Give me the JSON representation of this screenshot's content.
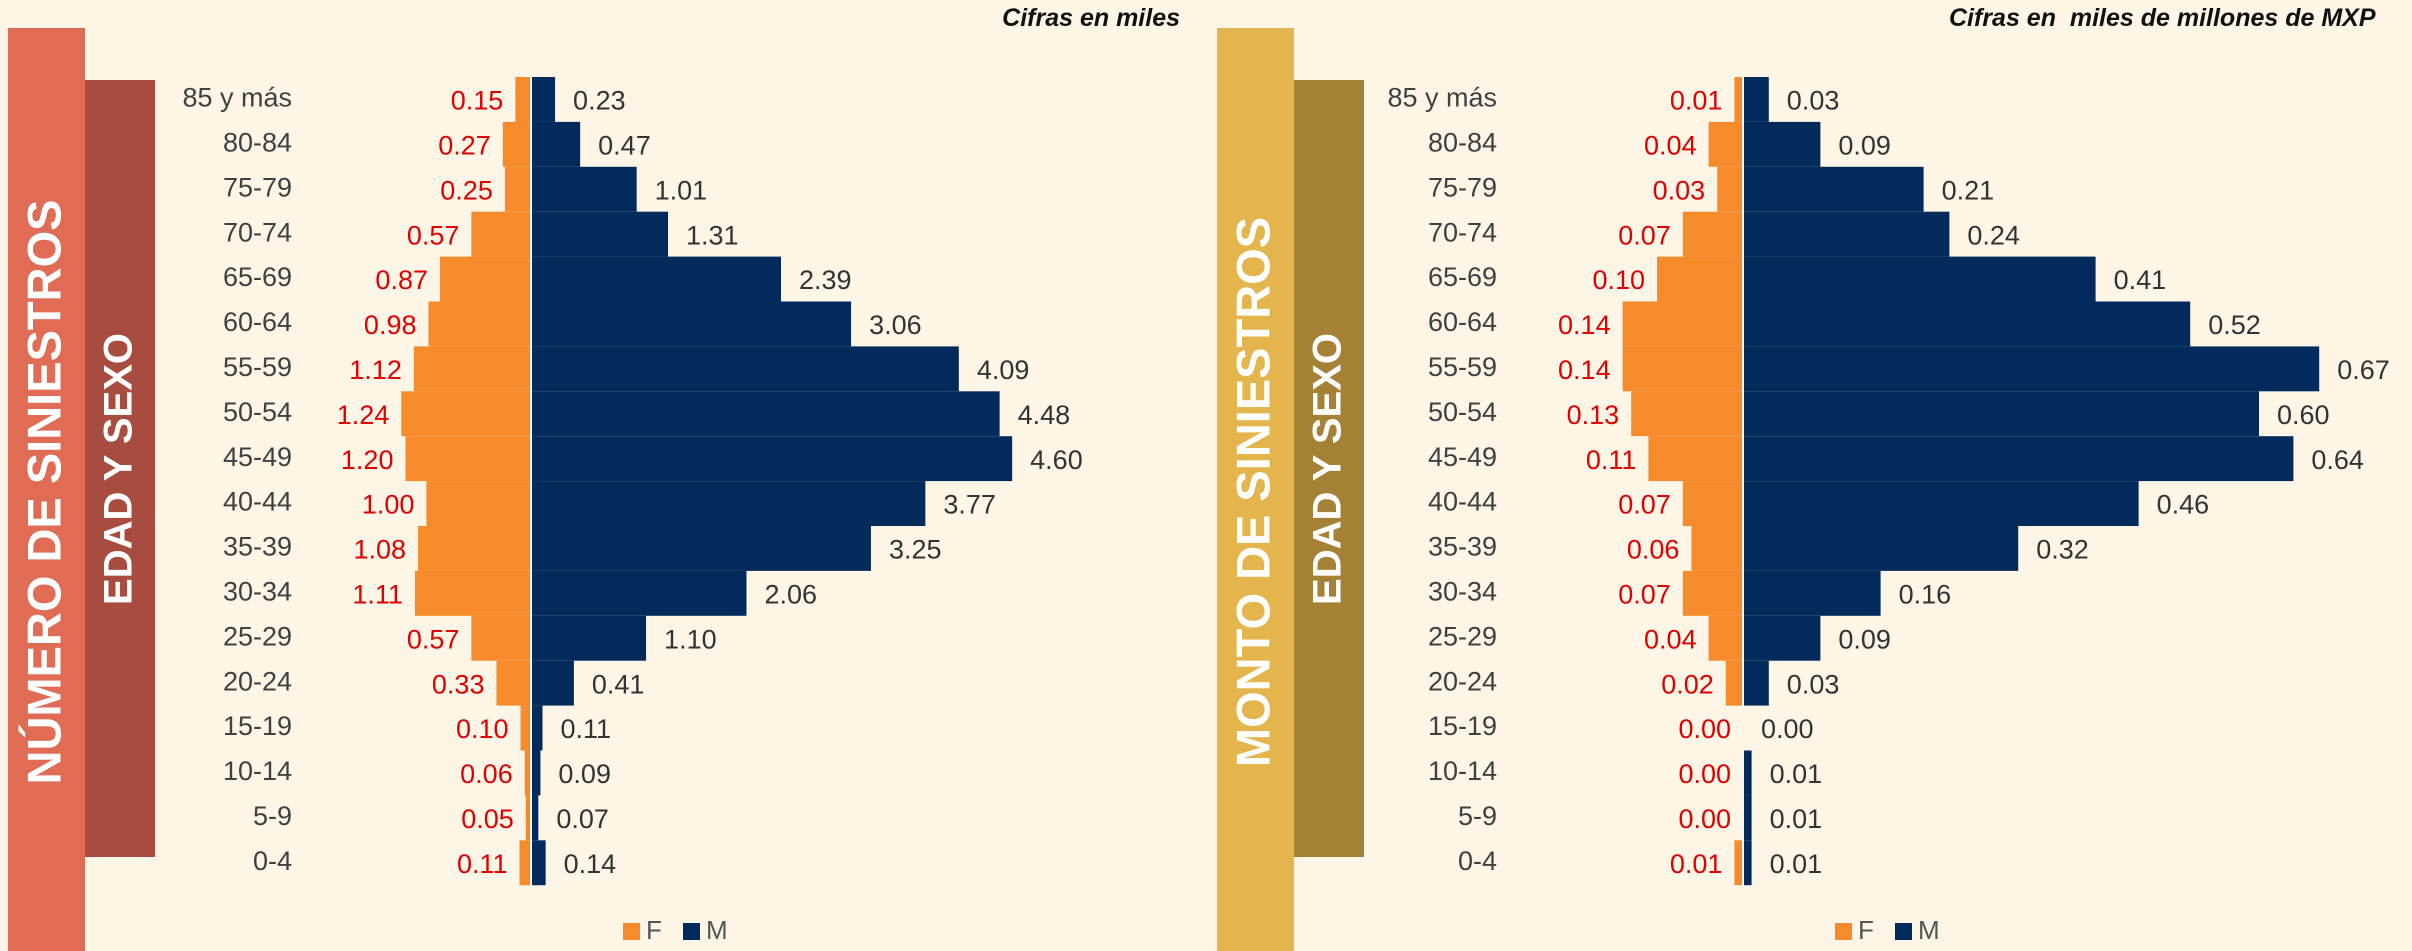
{
  "chart_data": [
    {
      "type": "pyramid",
      "title": "NÚMERO DE SINIESTROS",
      "subtitle": "EDAD Y SEXO",
      "note": "Cifras en miles",
      "categories": [
        "85 y más",
        "80-84",
        "75-79",
        "70-74",
        "65-69",
        "60-64",
        "55-59",
        "50-54",
        "45-49",
        "40-44",
        "35-39",
        "30-34",
        "25-29",
        "20-24",
        "15-19",
        "10-14",
        "5-9",
        "0-4"
      ],
      "series": [
        {
          "name": "F",
          "color": "#f68b2c",
          "values": [
            0.15,
            0.27,
            0.25,
            0.57,
            0.87,
            0.98,
            1.12,
            1.24,
            1.2,
            1.0,
            1.08,
            1.11,
            0.57,
            0.33,
            0.1,
            0.06,
            0.05,
            0.11
          ],
          "value_labels": [
            "0.15",
            "0.27",
            "0.25",
            "0.57",
            "0.87",
            "0.98",
            "1.12",
            "1.24",
            "1.20",
            "1.00",
            "1.08",
            "1.11",
            "0.57",
            "0.33",
            "0.10",
            "0.06",
            "0.05",
            "0.11"
          ]
        },
        {
          "name": "M",
          "color": "#022b5c",
          "values": [
            0.23,
            0.47,
            1.01,
            1.31,
            2.39,
            3.06,
            4.09,
            4.48,
            4.6,
            3.77,
            3.25,
            2.06,
            1.1,
            0.41,
            0.11,
            0.09,
            0.07,
            0.14
          ],
          "value_labels": [
            "0.23",
            "0.47",
            "1.01",
            "1.31",
            "2.39",
            "3.06",
            "4.09",
            "4.48",
            "4.60",
            "3.77",
            "3.25",
            "2.06",
            "1.10",
            "0.41",
            "0.11",
            "0.09",
            "0.07",
            "0.14"
          ]
        }
      ]
    },
    {
      "type": "pyramid",
      "title": "MONTO DE SINIESTROS",
      "subtitle": "EDAD Y SEXO",
      "note": "Cifras en  miles de millones de MXP",
      "categories": [
        "85 y más",
        "80-84",
        "75-79",
        "70-74",
        "65-69",
        "60-64",
        "55-59",
        "50-54",
        "45-49",
        "40-44",
        "35-39",
        "30-34",
        "25-29",
        "20-24",
        "15-19",
        "10-14",
        "5-9",
        "0-4"
      ],
      "series": [
        {
          "name": "F",
          "color": "#f68b2c",
          "values": [
            0.01,
            0.04,
            0.03,
            0.07,
            0.1,
            0.14,
            0.14,
            0.13,
            0.11,
            0.07,
            0.06,
            0.07,
            0.04,
            0.02,
            0.0,
            0.0,
            0.0,
            0.01
          ],
          "value_labels": [
            "0.01",
            "0.04",
            "0.03",
            "0.07",
            "0.10",
            "0.14",
            "0.14",
            "0.13",
            "0.11",
            "0.07",
            "0.06",
            "0.07",
            "0.04",
            "0.02",
            "0.00",
            "0.00",
            "0.00",
            "0.01"
          ]
        },
        {
          "name": "M",
          "color": "#022b5c",
          "values": [
            0.03,
            0.09,
            0.21,
            0.24,
            0.41,
            0.52,
            0.67,
            0.6,
            0.64,
            0.46,
            0.32,
            0.16,
            0.09,
            0.03,
            0.0,
            0.01,
            0.01,
            0.01
          ],
          "value_labels": [
            "0.03",
            "0.09",
            "0.21",
            "0.24",
            "0.41",
            "0.52",
            "0.67",
            "0.60",
            "0.64",
            "0.46",
            "0.32",
            "0.16",
            "0.09",
            "0.03",
            "0.00",
            "0.01",
            "0.01",
            "0.01"
          ]
        }
      ]
    }
  ]
}
